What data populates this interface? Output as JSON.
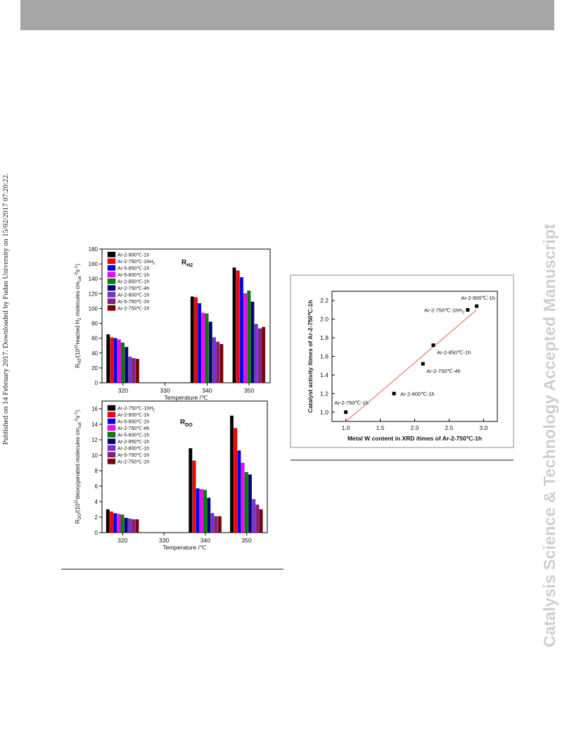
{
  "header": {},
  "side_text": {
    "published": "Published on 14 February 2017. Downloaded by Fudan University on 15/02/2017 07:20:22.",
    "journal": "Catalysis Science & Technology Accepted Manuscript"
  },
  "chart_data": [
    {
      "type": "bar",
      "name": "rh2",
      "panel_label": "R",
      "panel_label_sub": "H2",
      "ylabel": "R",
      "ylabel_sub": "H2",
      "ylabel_rest": "/(10",
      "ylabel_sup": "11",
      "ylabel_rest2": "reacted H",
      "ylabel_sub2": "2",
      "ylabel_rest3": " molecules cm",
      "ylabel_sub3": "cat",
      "ylabel_sup3": "-2",
      "ylabel_rest4": "s",
      "ylabel_sup4": "-1",
      "ylabel_rest5": ")",
      "xlabel": "Temperature  /℃",
      "categories": [
        "320",
        "330",
        "340",
        "350"
      ],
      "ylim": [
        0,
        180
      ],
      "yticks": [
        0,
        20,
        40,
        60,
        80,
        100,
        120,
        140,
        160,
        180
      ],
      "series": [
        {
          "name": "Ar-2-900℃-1h",
          "color": "#000000",
          "values": [
            65,
            null,
            116,
            155
          ]
        },
        {
          "name": "Ar-2-750℃-1hH",
          "name_sub": "2",
          "color": "#ff0000",
          "values": [
            61,
            null,
            115,
            151
          ]
        },
        {
          "name": "Ar-5-850℃-1h",
          "color": "#0000ff",
          "values": [
            60,
            null,
            107,
            142
          ]
        },
        {
          "name": "Ar-5-800℃-1h",
          "color": "#ff00ff",
          "values": [
            58,
            null,
            94,
            120
          ]
        },
        {
          "name": "Ar-2-850℃-1h",
          "color": "#008000",
          "values": [
            54,
            null,
            93,
            124
          ]
        },
        {
          "name": "Ar-2-750℃-4h",
          "color": "#000080",
          "values": [
            48,
            null,
            82,
            109
          ]
        },
        {
          "name": "Ar-2-800℃-1h",
          "color": "#7b2fdc",
          "values": [
            35,
            null,
            61,
            79
          ]
        },
        {
          "name": "Ar-5-750℃-1h",
          "color": "#8b1a8b",
          "values": [
            33,
            null,
            55,
            73
          ]
        },
        {
          "name": "Ar-2-750℃-1h",
          "color": "#800000",
          "values": [
            32,
            null,
            52,
            75
          ]
        }
      ]
    },
    {
      "type": "bar",
      "name": "rdo",
      "panel_label": "R",
      "panel_label_sub": "DO",
      "ylabel": "R",
      "ylabel_sub": "DO",
      "ylabel_rest": "/(10",
      "ylabel_sup": "11",
      "ylabel_rest2": "deoxygenated molecules cm",
      "ylabel_sub2": "cat",
      "ylabel_sup3": "-2",
      "ylabel_rest4": "s",
      "ylabel_sup4": "-1",
      "ylabel_rest5": ")",
      "xlabel": "Temperature  /℃",
      "categories": [
        "320",
        "330",
        "340",
        "350"
      ],
      "ylim": [
        0,
        17
      ],
      "yticks": [
        0,
        2,
        4,
        6,
        8,
        10,
        12,
        14,
        16
      ],
      "series": [
        {
          "name": "Ar-2-750℃-1hH",
          "name_sub": "2",
          "color": "#000000",
          "values": [
            3.0,
            null,
            10.9,
            15.1
          ]
        },
        {
          "name": "Ar-2-900℃-1h",
          "color": "#ff0000",
          "values": [
            2.7,
            null,
            9.3,
            13.5
          ]
        },
        {
          "name": "Ar-5-850℃-1h",
          "color": "#0000ff",
          "values": [
            2.5,
            null,
            5.7,
            10.6
          ]
        },
        {
          "name": "Ar-2-750℃-4h",
          "color": "#ff00ff",
          "values": [
            2.4,
            null,
            5.6,
            9.0
          ]
        },
        {
          "name": "Ar-5-800℃-1h",
          "color": "#008000",
          "values": [
            2.3,
            null,
            5.5,
            7.8
          ]
        },
        {
          "name": "Ar-2-850℃-1h",
          "color": "#000080",
          "values": [
            1.9,
            null,
            4.5,
            7.5
          ]
        },
        {
          "name": "Ar-2-800℃-1h",
          "color": "#7b2fdc",
          "values": [
            1.8,
            null,
            2.5,
            4.3
          ]
        },
        {
          "name": "Ar-5-750℃-1h",
          "color": "#8b1a8b",
          "values": [
            1.7,
            null,
            2.1,
            3.6
          ]
        },
        {
          "name": "Ar-2-750℃-1h",
          "color": "#800000",
          "values": [
            1.7,
            null,
            2.1,
            3.0
          ]
        }
      ]
    },
    {
      "type": "scatter",
      "name": "activity",
      "xlabel": "Metal W content in XRD /times of Ar-2-750℃-1h",
      "ylabel": "Catalyst activity /times of Ar-2-750℃-1h",
      "xlim": [
        0.8,
        3.2
      ],
      "ylim": [
        0.9,
        2.3
      ],
      "xticks": [
        1.0,
        1.5,
        2.0,
        2.5,
        3.0
      ],
      "yticks": [
        1.0,
        1.2,
        1.4,
        1.6,
        1.8,
        2.0,
        2.2
      ],
      "fit_color": "#e07a6a",
      "fit_line": [
        [
          1.0,
          0.9
        ],
        [
          2.9,
          2.1
        ]
      ],
      "points": [
        {
          "x": 1.0,
          "y": 1.0,
          "label": "Ar-2-750℃-1h",
          "label_pos": "above-left"
        },
        {
          "x": 1.7,
          "y": 1.2,
          "label": "Ar-2-800℃-1h",
          "label_pos": "right"
        },
        {
          "x": 2.12,
          "y": 1.52,
          "label": "Ar-2-750℃-4h",
          "label_pos": "below-right"
        },
        {
          "x": 2.27,
          "y": 1.72,
          "label": "Ar-2-850℃-1h",
          "label_pos": "below-right"
        },
        {
          "x": 2.77,
          "y": 2.1,
          "label": "Ar-2-750℃-1hH",
          "label_sub": "2",
          "label_pos": "left"
        },
        {
          "x": 2.9,
          "y": 2.14,
          "label": "Ar-2-900℃-1h",
          "label_pos": "above"
        }
      ]
    }
  ]
}
